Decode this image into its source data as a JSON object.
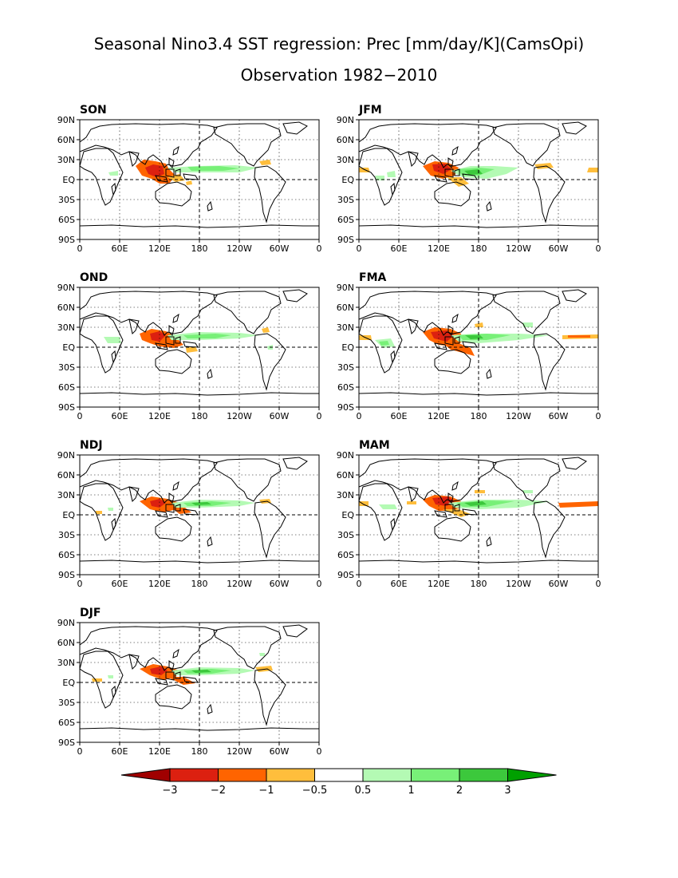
{
  "title": {
    "line1": "Seasonal Nino3.4 SST regression: Prec [mm/day/K](CamsOpi)",
    "line2": "Observation 1982−2010"
  },
  "map_axes": {
    "lon_ticks": [
      "0",
      "60E",
      "120E",
      "180",
      "120W",
      "60W",
      "0"
    ],
    "lat_ticks": [
      "90N",
      "60N",
      "30N",
      "EQ",
      "30S",
      "60S",
      "90S"
    ]
  },
  "panels": [
    {
      "label": "SON"
    },
    {
      "label": "JFM"
    },
    {
      "label": "OND"
    },
    {
      "label": "FMA"
    },
    {
      "label": "NDJ"
    },
    {
      "label": "MAM"
    },
    {
      "label": "DJF"
    }
  ],
  "colorbar": {
    "tick_labels": [
      "−3",
      "−2",
      "−1",
      "−0.5",
      "0.5",
      "1",
      "2",
      "3"
    ],
    "colors": [
      "#a00000",
      "#dc2010",
      "#ff6400",
      "#ffbe3c",
      "#ffffff",
      "#b4fab4",
      "#78f078",
      "#3cc83c",
      "#00a000"
    ]
  },
  "colors": {
    "neg_strong": "#dc2010",
    "neg_mid": "#ff6400",
    "neg_weak": "#ffbe3c",
    "pos_weak": "#b4fab4",
    "pos_mid": "#78f078",
    "pos_strong": "#3cc83c"
  }
}
